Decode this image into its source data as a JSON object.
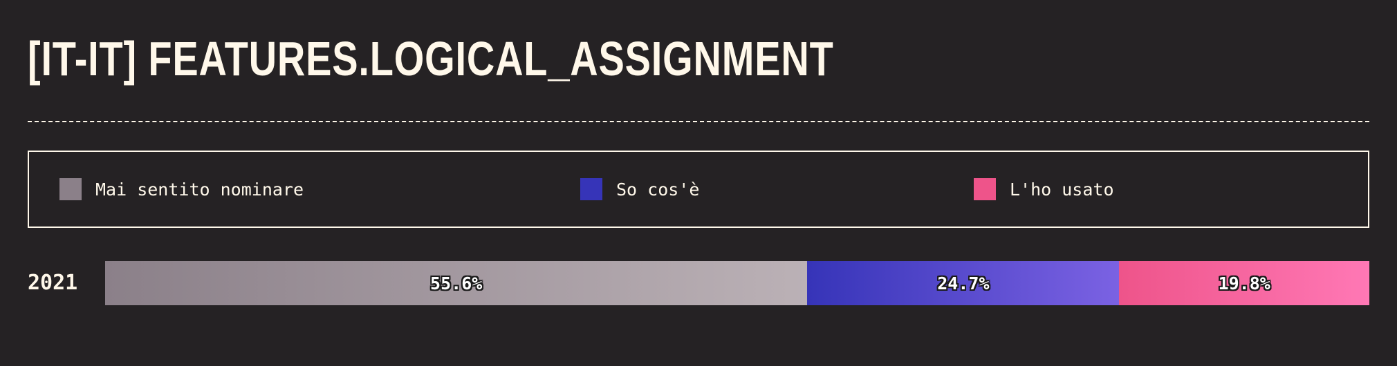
{
  "header": {
    "title": "[IT-IT] FEATURES.LOGICAL_ASSIGNMENT"
  },
  "legend": {
    "items": [
      {
        "label": "Mai sentito nominare",
        "color": "#8b8089"
      },
      {
        "label": "So cos'è",
        "color": "#3634b8"
      },
      {
        "label": "L'ho usato",
        "color": "#ee548a"
      }
    ]
  },
  "chart_data": {
    "type": "bar",
    "orientation": "horizontal-stacked",
    "categories": [
      "2021"
    ],
    "series": [
      {
        "name": "Mai sentito nominare",
        "values": [
          55.6
        ],
        "label": "55.6%",
        "color_from": "#8b8089",
        "color_to": "#bbb1b6"
      },
      {
        "name": "So cos'è",
        "values": [
          24.7
        ],
        "label": "24.7%",
        "color_from": "#3634b8",
        "color_to": "#7b62e3"
      },
      {
        "name": "L'ho usato",
        "values": [
          19.8
        ],
        "label": "19.8%",
        "color_from": "#ee548a",
        "color_to": "#ff78b5"
      }
    ],
    "xlim": [
      0,
      100
    ],
    "unit": "%"
  }
}
